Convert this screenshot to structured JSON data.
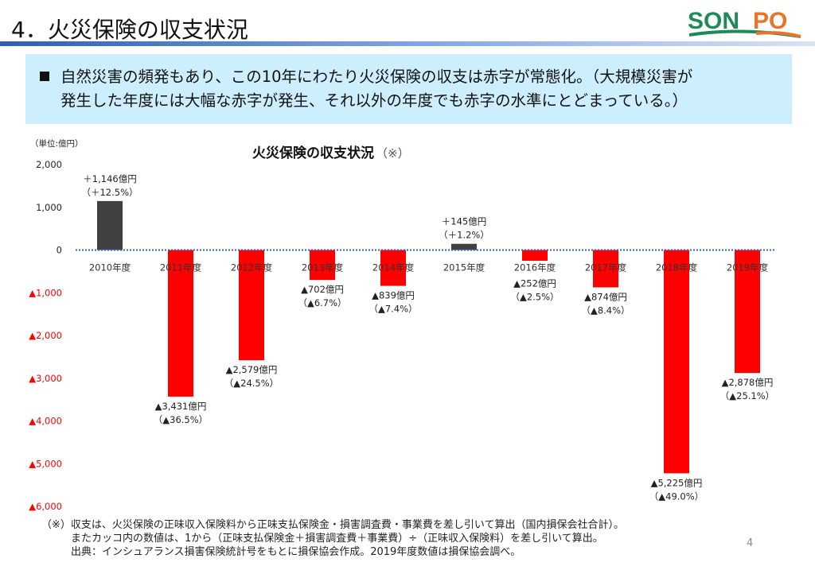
{
  "header": {
    "title": "4．火災保険の収支状況",
    "logo_text": "SONPO"
  },
  "summary": {
    "line1": "自然災害の頻発もあり、この10年にわたり火災保険の収支は赤字が常態化。（大規模災害が",
    "line2": "発生した年度には大幅な赤字が発生、それ以外の年度でも赤字の水準にとどまっている。）"
  },
  "chart_data": {
    "type": "bar",
    "title": "火災保険の収支状況",
    "title_note": "（※）",
    "unit_label": "（単位:億円）",
    "categories": [
      "2010年度",
      "2011年度",
      "2012年度",
      "2013年度",
      "2014年度",
      "2015年度",
      "2016年度",
      "2017年度",
      "2018年度",
      "2019年度"
    ],
    "values": [
      1146,
      -3431,
      -2579,
      -702,
      -839,
      145,
      -252,
      -874,
      -5225,
      -2878
    ],
    "data_labels": [
      [
        "＋1,146億円",
        "（＋12.5%）"
      ],
      [
        "▲3,431億円",
        "（▲36.5%）"
      ],
      [
        "▲2,579億円",
        "（▲24.5%）"
      ],
      [
        "▲702億円",
        "（▲6.7%）"
      ],
      [
        "▲839億円",
        "（▲7.4%）"
      ],
      [
        "＋145億円",
        "（＋1.2%）"
      ],
      [
        "▲252億円",
        "（▲2.5%）"
      ],
      [
        "▲874億円",
        "（▲8.4%）"
      ],
      [
        "▲5,225億円",
        "（▲49.0%）"
      ],
      [
        "▲2,878億円",
        "（▲25.1%）"
      ]
    ],
    "ylim": [
      -6000,
      2000
    ],
    "yticks": [
      2000,
      1000,
      0,
      -1000,
      -2000,
      -3000,
      -4000,
      -5000,
      -6000
    ],
    "ytick_labels": [
      "2,000",
      "1,000",
      "0",
      "▲1,000",
      "▲2,000",
      "▲3,000",
      "▲4,000",
      "▲5,000",
      "▲6,000"
    ],
    "colors": {
      "positive": "#404040",
      "negative": "#ff0000",
      "zero_line": "#3b5fc0",
      "neg_tick": "#ff0000"
    }
  },
  "footnote": {
    "line1": "（※）収支は、火災保険の正味収入保険料から正味支払保険金・損害調査費・事業費を差し引いて算出（国内損保会社合計）。",
    "line2": "またカッコ内の数値は、1から（正味支払保険金＋損害調査費＋事業費）÷（正味収入保険料）を差し引いて算出。",
    "line3": "出典：インシュアランス損害保険統計号をもとに損保協会作成。2019年度数値は損保協会調べ。"
  },
  "page_number": "4"
}
